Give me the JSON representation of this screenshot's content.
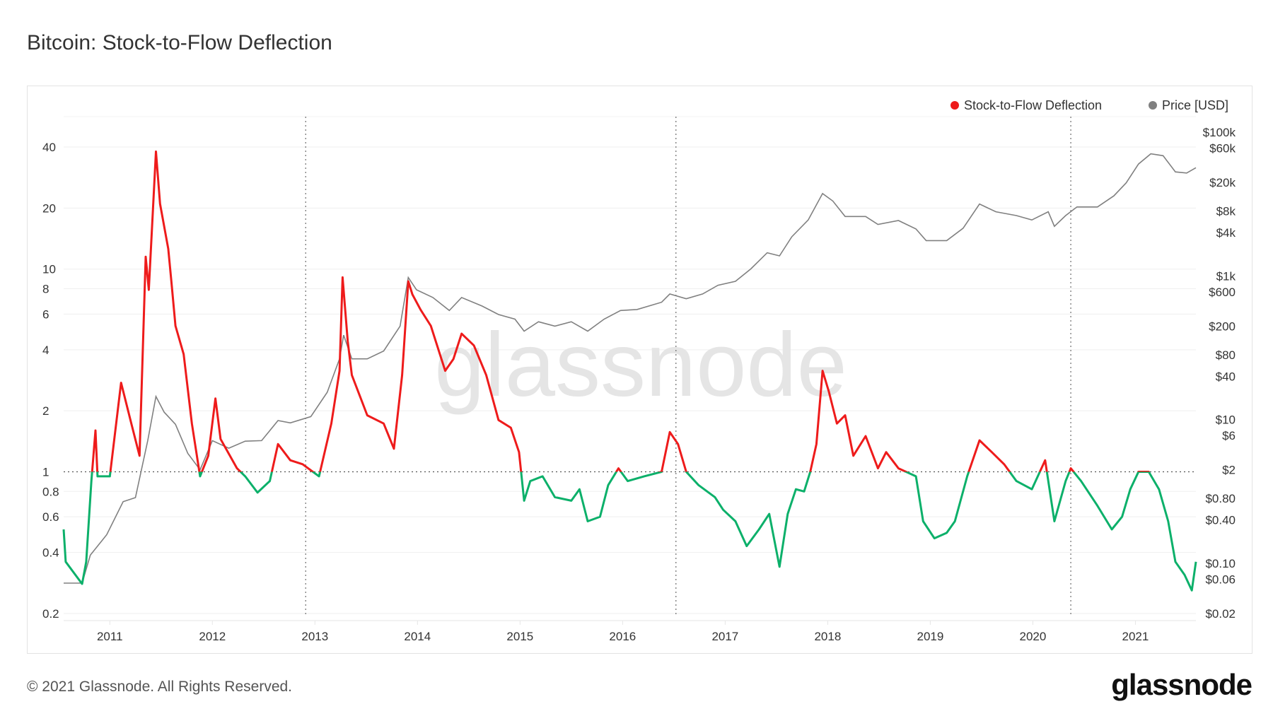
{
  "title": "Bitcoin: Stock-to-Flow Deflection",
  "footer": "© 2021 Glassnode. All Rights Reserved.",
  "logo": "glassnode",
  "watermark": "glassnode",
  "chart_data": {
    "type": "line",
    "title": "Bitcoin: Stock-to-Flow Deflection",
    "legend_position": "top-right",
    "grid": true,
    "x_ticks": [
      "2011",
      "2012",
      "2013",
      "2014",
      "2015",
      "2016",
      "2017",
      "2018",
      "2019",
      "2020",
      "2021"
    ],
    "xlim": [
      2010.55,
      2021.59
    ],
    "left_axis": {
      "scale": "log",
      "ylim": [
        0.2,
        40
      ],
      "ticks": [
        0.2,
        0.4,
        0.6,
        0.8,
        1,
        2,
        4,
        6,
        8,
        10,
        20,
        40
      ],
      "tick_labels": [
        "0.2",
        "0.4",
        "0.6",
        "0.8",
        "1",
        "2",
        "4",
        "6",
        "8",
        "10",
        "20",
        "40"
      ]
    },
    "right_axis": {
      "scale": "log",
      "ylim": [
        0.02,
        100000
      ],
      "ticks": [
        0.02,
        0.06,
        0.1,
        0.4,
        0.8,
        2,
        6,
        10,
        40,
        80,
        200,
        600,
        1000,
        4000,
        8000,
        20000,
        60000,
        100000
      ],
      "tick_labels": [
        "$0.02",
        "$0.06",
        "$0.10",
        "$0.40",
        "$0.80",
        "$2",
        "$6",
        "$10",
        "$40",
        "$80",
        "$200",
        "$600",
        "$1k",
        "$4k",
        "$8k",
        "$20k",
        "$60k",
        "$100k"
      ]
    },
    "reference_line": {
      "axis": "left",
      "value": 1,
      "style": "dotted"
    },
    "halving_lines": [
      2012.91,
      2016.52,
      2020.37
    ],
    "colors": {
      "above_one": "#ee1b1b",
      "below_one": "#0cb06a",
      "price": "#808080"
    },
    "series": [
      {
        "name": "Stock-to-Flow Deflection",
        "axis": "left",
        "legend_color": "#ee1b1b",
        "points": [
          [
            2010.55,
            0.52
          ],
          [
            2010.57,
            0.36
          ],
          [
            2010.73,
            0.28
          ],
          [
            2010.77,
            0.36
          ],
          [
            2010.82,
            0.9
          ],
          [
            2010.86,
            1.6
          ],
          [
            2010.88,
            0.95
          ],
          [
            2011.0,
            0.95
          ],
          [
            2011.11,
            2.75
          ],
          [
            2011.21,
            1.73
          ],
          [
            2011.29,
            1.2
          ],
          [
            2011.35,
            11.5
          ],
          [
            2011.38,
            7.9
          ],
          [
            2011.45,
            38
          ],
          [
            2011.49,
            21
          ],
          [
            2011.57,
            12.6
          ],
          [
            2011.6,
            8.7
          ],
          [
            2011.64,
            5.25
          ],
          [
            2011.72,
            3.8
          ],
          [
            2011.8,
            1.73
          ],
          [
            2011.88,
            0.95
          ],
          [
            2011.96,
            1.2
          ],
          [
            2012.03,
            2.3
          ],
          [
            2012.08,
            1.45
          ],
          [
            2012.24,
            1.04
          ],
          [
            2012.32,
            0.95
          ],
          [
            2012.44,
            0.79
          ],
          [
            2012.56,
            0.9
          ],
          [
            2012.64,
            1.37
          ],
          [
            2012.76,
            1.14
          ],
          [
            2012.88,
            1.09
          ],
          [
            2013.04,
            0.95
          ],
          [
            2013.16,
            1.73
          ],
          [
            2013.24,
            3.15
          ],
          [
            2013.27,
            9.1
          ],
          [
            2013.32,
            4.4
          ],
          [
            2013.36,
            3.0
          ],
          [
            2013.51,
            1.9
          ],
          [
            2013.67,
            1.73
          ],
          [
            2013.77,
            1.3
          ],
          [
            2013.85,
            3.0
          ],
          [
            2013.91,
            8.7
          ],
          [
            2013.95,
            7.5
          ],
          [
            2014.03,
            6.3
          ],
          [
            2014.13,
            5.25
          ],
          [
            2014.27,
            3.15
          ],
          [
            2014.35,
            3.6
          ],
          [
            2014.43,
            4.8
          ],
          [
            2014.55,
            4.2
          ],
          [
            2014.67,
            3.0
          ],
          [
            2014.79,
            1.8
          ],
          [
            2014.91,
            1.65
          ],
          [
            2014.99,
            1.25
          ],
          [
            2015.04,
            0.72
          ],
          [
            2015.1,
            0.9
          ],
          [
            2015.22,
            0.95
          ],
          [
            2015.34,
            0.75
          ],
          [
            2015.5,
            0.72
          ],
          [
            2015.58,
            0.82
          ],
          [
            2015.66,
            0.57
          ],
          [
            2015.78,
            0.6
          ],
          [
            2015.86,
            0.86
          ],
          [
            2015.96,
            1.04
          ],
          [
            2016.05,
            0.9
          ],
          [
            2016.21,
            0.95
          ],
          [
            2016.38,
            1.0
          ],
          [
            2016.46,
            1.57
          ],
          [
            2016.54,
            1.37
          ],
          [
            2016.62,
            1.0
          ],
          [
            2016.74,
            0.86
          ],
          [
            2016.9,
            0.75
          ],
          [
            2016.98,
            0.65
          ],
          [
            2017.1,
            0.57
          ],
          [
            2017.21,
            0.43
          ],
          [
            2017.33,
            0.52
          ],
          [
            2017.43,
            0.62
          ],
          [
            2017.53,
            0.34
          ],
          [
            2017.61,
            0.62
          ],
          [
            2017.69,
            0.82
          ],
          [
            2017.77,
            0.8
          ],
          [
            2017.83,
            1.0
          ],
          [
            2017.89,
            1.37
          ],
          [
            2017.95,
            3.15
          ],
          [
            2018.01,
            2.5
          ],
          [
            2018.09,
            1.73
          ],
          [
            2018.17,
            1.9
          ],
          [
            2018.25,
            1.2
          ],
          [
            2018.37,
            1.5
          ],
          [
            2018.49,
            1.04
          ],
          [
            2018.57,
            1.25
          ],
          [
            2018.69,
            1.04
          ],
          [
            2018.86,
            0.95
          ],
          [
            2018.93,
            0.57
          ],
          [
            2019.04,
            0.47
          ],
          [
            2019.16,
            0.5
          ],
          [
            2019.24,
            0.57
          ],
          [
            2019.36,
            0.95
          ],
          [
            2019.48,
            1.43
          ],
          [
            2019.6,
            1.25
          ],
          [
            2019.72,
            1.09
          ],
          [
            2019.84,
            0.9
          ],
          [
            2019.99,
            0.82
          ],
          [
            2020.12,
            1.14
          ],
          [
            2020.21,
            0.57
          ],
          [
            2020.32,
            0.9
          ],
          [
            2020.37,
            1.04
          ],
          [
            2020.47,
            0.9
          ],
          [
            2020.63,
            0.68
          ],
          [
            2020.77,
            0.52
          ],
          [
            2020.87,
            0.6
          ],
          [
            2020.95,
            0.82
          ],
          [
            2021.03,
            1.0
          ],
          [
            2021.13,
            1.0
          ],
          [
            2021.23,
            0.82
          ],
          [
            2021.32,
            0.57
          ],
          [
            2021.39,
            0.36
          ],
          [
            2021.48,
            0.31
          ],
          [
            2021.55,
            0.26
          ],
          [
            2021.59,
            0.36
          ]
        ]
      },
      {
        "name": "Price [USD]",
        "axis": "right",
        "legend_color": "#808080",
        "points": [
          [
            2010.55,
            0.053
          ],
          [
            2010.73,
            0.053
          ],
          [
            2010.81,
            0.13
          ],
          [
            2010.97,
            0.25
          ],
          [
            2011.13,
            0.72
          ],
          [
            2011.25,
            0.82
          ],
          [
            2011.37,
            5.1
          ],
          [
            2011.45,
            21
          ],
          [
            2011.53,
            12.7
          ],
          [
            2011.64,
            8.6
          ],
          [
            2011.76,
            3.4
          ],
          [
            2011.88,
            2.0
          ],
          [
            2012.0,
            5.1
          ],
          [
            2012.16,
            4.0
          ],
          [
            2012.32,
            5.0
          ],
          [
            2012.48,
            5.1
          ],
          [
            2012.64,
            9.7
          ],
          [
            2012.76,
            9.0
          ],
          [
            2012.96,
            11
          ],
          [
            2013.12,
            24
          ],
          [
            2013.24,
            70
          ],
          [
            2013.28,
            150
          ],
          [
            2013.36,
            70
          ],
          [
            2013.51,
            70
          ],
          [
            2013.67,
            90
          ],
          [
            2013.83,
            200
          ],
          [
            2013.91,
            950
          ],
          [
            2013.99,
            640
          ],
          [
            2014.15,
            500
          ],
          [
            2014.31,
            330
          ],
          [
            2014.43,
            500
          ],
          [
            2014.63,
            380
          ],
          [
            2014.79,
            290
          ],
          [
            2014.95,
            250
          ],
          [
            2015.04,
            170
          ],
          [
            2015.18,
            230
          ],
          [
            2015.34,
            200
          ],
          [
            2015.5,
            230
          ],
          [
            2015.66,
            170
          ],
          [
            2015.82,
            250
          ],
          [
            2015.98,
            330
          ],
          [
            2016.14,
            340
          ],
          [
            2016.38,
            430
          ],
          [
            2016.46,
            560
          ],
          [
            2016.62,
            480
          ],
          [
            2016.78,
            560
          ],
          [
            2016.93,
            740
          ],
          [
            2017.1,
            840
          ],
          [
            2017.25,
            1250
          ],
          [
            2017.41,
            2100
          ],
          [
            2017.53,
            1900
          ],
          [
            2017.65,
            3500
          ],
          [
            2017.81,
            6000
          ],
          [
            2017.95,
            14000
          ],
          [
            2018.05,
            11000
          ],
          [
            2018.17,
            6700
          ],
          [
            2018.37,
            6700
          ],
          [
            2018.49,
            5200
          ],
          [
            2018.69,
            5900
          ],
          [
            2018.86,
            4500
          ],
          [
            2018.96,
            3100
          ],
          [
            2019.16,
            3100
          ],
          [
            2019.32,
            4600
          ],
          [
            2019.48,
            10000
          ],
          [
            2019.64,
            7800
          ],
          [
            2019.84,
            6900
          ],
          [
            2019.99,
            6000
          ],
          [
            2020.15,
            7800
          ],
          [
            2020.21,
            4900
          ],
          [
            2020.32,
            6900
          ],
          [
            2020.43,
            9100
          ],
          [
            2020.63,
            9100
          ],
          [
            2020.79,
            13000
          ],
          [
            2020.91,
            19700
          ],
          [
            2021.03,
            36000
          ],
          [
            2021.15,
            50000
          ],
          [
            2021.27,
            47000
          ],
          [
            2021.39,
            28000
          ],
          [
            2021.5,
            27000
          ],
          [
            2021.59,
            32000
          ]
        ]
      }
    ]
  }
}
